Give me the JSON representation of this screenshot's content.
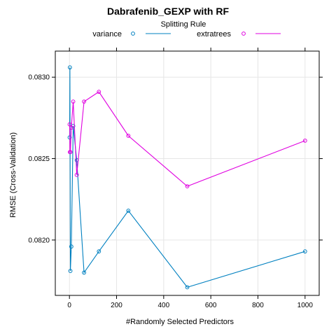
{
  "chart_data": {
    "type": "line",
    "title": "Dabrafenib_GEXP with RF",
    "legend_title": "Splitting Rule",
    "legend_placement": "top",
    "xlabel": "#Randomly Selected Predictors",
    "ylabel": "RMSE (Cross-Validation)",
    "xlim": [
      -60,
      1060
    ],
    "ylim": [
      0.08166,
      0.08316
    ],
    "x_ticks": [
      0,
      200,
      400,
      600,
      800,
      1000
    ],
    "x_tick_labels": [
      "0",
      "200",
      "400",
      "600",
      "800",
      "1000"
    ],
    "y_ticks": [
      0.082,
      0.0825,
      0.083
    ],
    "y_tick_labels": [
      "0.0820",
      "0.0825",
      "0.0830"
    ],
    "grid": true,
    "series": [
      {
        "name": "variance",
        "color": "#0080C0",
        "x": [
          1,
          2,
          4,
          8,
          16,
          31,
          62,
          125,
          250,
          500,
          1000
        ],
        "y": [
          0.08263,
          0.08306,
          0.08181,
          0.08196,
          0.0827,
          0.08249,
          0.0818,
          0.08193,
          0.08218,
          0.08171,
          0.08193
        ]
      },
      {
        "name": "extratrees",
        "color": "#E000E0",
        "x": [
          1,
          2,
          4,
          8,
          16,
          31,
          62,
          125,
          250,
          500,
          1000
        ],
        "y": [
          0.08271,
          0.08254,
          0.08254,
          0.08269,
          0.08285,
          0.0824,
          0.08285,
          0.08291,
          0.08264,
          0.08233,
          0.08261
        ]
      }
    ]
  }
}
